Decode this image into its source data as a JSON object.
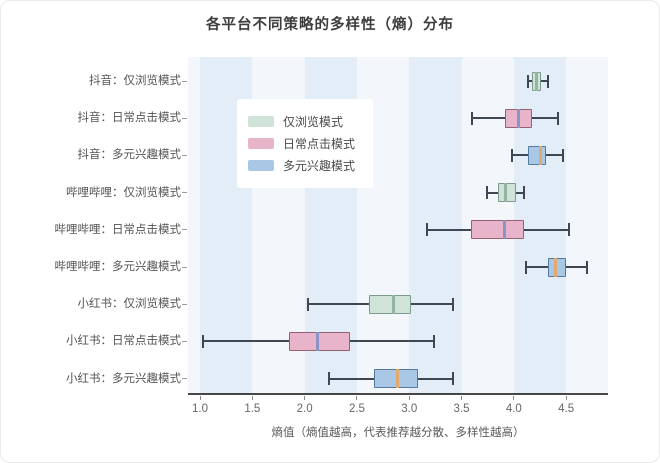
{
  "title": "各平台不同策略的多样性（熵）分布",
  "chart_data": {
    "type": "boxplot-horizontal",
    "title": "各平台不同策略的多样性（熵）分布",
    "xlabel": "熵值（熵值越高，代表推荐越分散、多样性越高）",
    "xlim": [
      0.885,
      4.9
    ],
    "xticks": [
      "1.0",
      "1.5",
      "2.0",
      "2.5",
      "3.0",
      "3.5",
      "4.0",
      "4.5"
    ],
    "grid_bands": {
      "starts": [
        1.0,
        2.0,
        3.0,
        4.0
      ],
      "width": 0.5,
      "stripe_color": "#e3edf8",
      "base_color": "#f3f7fc"
    },
    "legend_position": "upper-left-inside",
    "legend": [
      {
        "label": "仅浏览模式",
        "group": "browse"
      },
      {
        "label": "日常点击模式",
        "group": "click"
      },
      {
        "label": "多元兴趣模式",
        "group": "interest"
      }
    ],
    "groups": {
      "browse": {
        "fill": "#cfe3d8",
        "border": "#7c9b8b",
        "median_color": "#93b4a5"
      },
      "click": {
        "fill": "#e8b4c9",
        "border": "#98616f",
        "median_color": "#8b93c7"
      },
      "interest": {
        "fill": "#a9c8e6",
        "border": "#55799d",
        "median_color": "#dfa96f"
      }
    },
    "whisker_color": "#3f4654",
    "rows": [
      {
        "label": "抖音：仅浏览模式",
        "group": "browse",
        "whisker_low": 4.14,
        "q1": 4.17,
        "median": 4.22,
        "q3": 4.26,
        "whisker_high": 4.33
      },
      {
        "label": "抖音：日常点击模式",
        "group": "click",
        "whisker_low": 3.6,
        "q1": 3.92,
        "median": 4.04,
        "q3": 4.17,
        "whisker_high": 4.42
      },
      {
        "label": "抖音：多元兴趣模式",
        "group": "interest",
        "whisker_low": 3.98,
        "q1": 4.14,
        "median": 4.25,
        "q3": 4.31,
        "whisker_high": 4.47
      },
      {
        "label": "哔哩哔哩：仅浏览模式",
        "group": "browse",
        "whisker_low": 3.74,
        "q1": 3.85,
        "median": 3.92,
        "q3": 4.02,
        "whisker_high": 4.1
      },
      {
        "label": "哔哩哔哩：日常点击模式",
        "group": "click",
        "whisker_low": 3.17,
        "q1": 3.59,
        "median": 3.91,
        "q3": 4.1,
        "whisker_high": 4.53
      },
      {
        "label": "哔哩哔哩：多元兴趣模式",
        "group": "interest",
        "whisker_low": 4.12,
        "q1": 4.33,
        "median": 4.4,
        "q3": 4.5,
        "whisker_high": 4.7
      },
      {
        "label": "小红书：仅浏览模式",
        "group": "browse",
        "whisker_low": 2.03,
        "q1": 2.62,
        "median": 2.85,
        "q3": 3.02,
        "whisker_high": 3.42
      },
      {
        "label": "小红书：日常点击模式",
        "group": "click",
        "whisker_low": 1.03,
        "q1": 1.85,
        "median": 2.12,
        "q3": 2.43,
        "whisker_high": 3.24
      },
      {
        "label": "小红书：多元兴趣模式",
        "group": "interest",
        "whisker_low": 2.23,
        "q1": 2.66,
        "median": 2.89,
        "q3": 3.08,
        "whisker_high": 3.42
      }
    ]
  }
}
